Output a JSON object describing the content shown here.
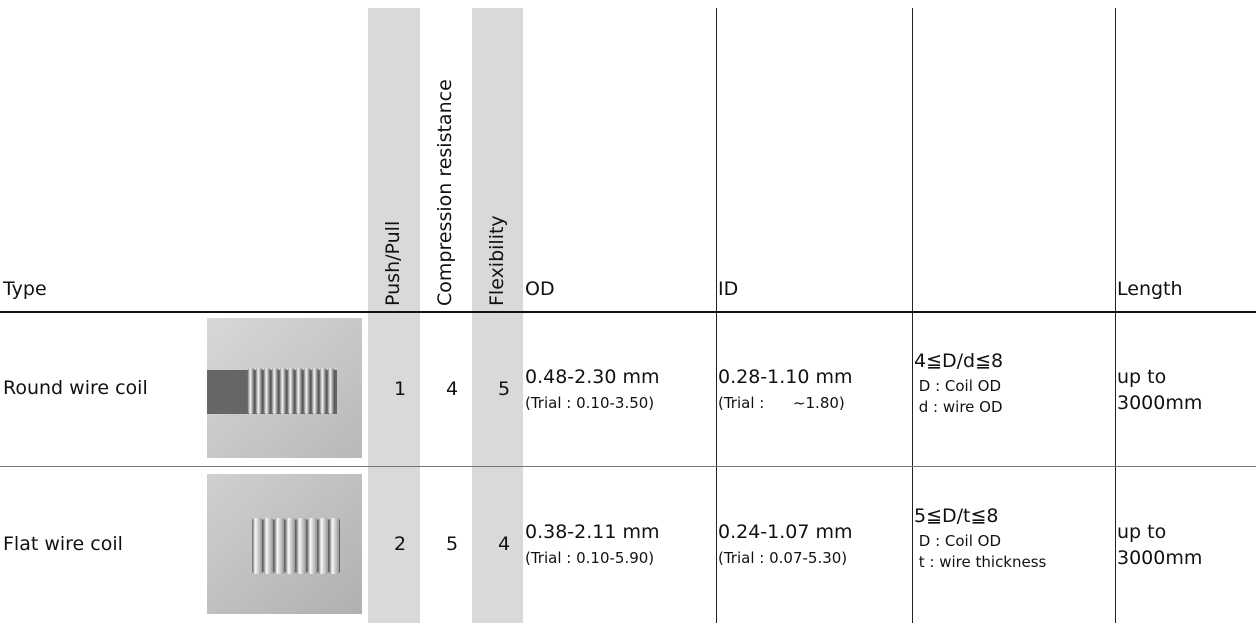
{
  "header": {
    "type": "Type",
    "push_pull": "Push/Pull",
    "compression": "Compression resistance",
    "flexibility": "Flexibility",
    "od": "OD",
    "id": "ID",
    "length": "Length"
  },
  "rows": [
    {
      "type": "Round wire coil",
      "push_pull": 1,
      "compression": 4,
      "flexibility": 5,
      "od": "0.48-2.30 mm",
      "od_trial": "(Trial : 0.10-3.50)",
      "id": "0.28-1.10 mm",
      "id_trial": "(Trial :      ~1.80)",
      "ratio": [
        "4≦D/d≦8",
        " D : Coil OD",
        " d : wire OD"
      ],
      "length": [
        "up to",
        "3000mm"
      ]
    },
    {
      "type": "Flat wire coil",
      "push_pull": 2,
      "compression": 5,
      "flexibility": 4,
      "od": "0.38-2.11 mm",
      "od_trial": "(Trial : 0.10-5.90)",
      "id": "0.24-1.07 mm",
      "id_trial": "(Trial : 0.07-5.30)",
      "ratio": [
        "5≦D/t≦8",
        " D : Coil OD",
        " t : wire thickness"
      ],
      "length": [
        "up to",
        "3000mm"
      ]
    }
  ]
}
